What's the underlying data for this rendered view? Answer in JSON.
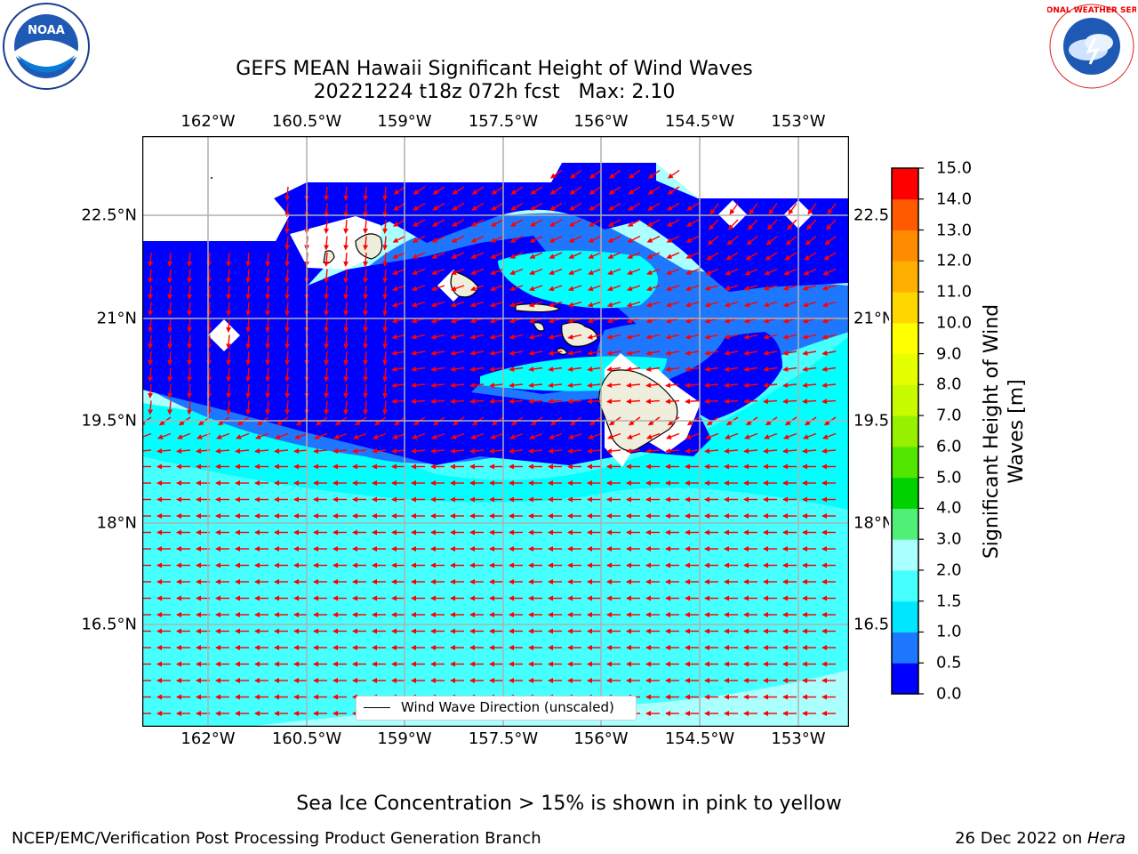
{
  "title_line1": "GEFS MEAN Hawaii Significant Height of Wind Waves",
  "title_line2": "20221224 t18z 072h fcst   Max: 2.10",
  "x_ticks": [
    "162°W",
    "160.5°W",
    "159°W",
    "157.5°W",
    "156°W",
    "154.5°W",
    "153°W"
  ],
  "y_ticks": [
    "22.5°N",
    "21°N",
    "19.5°N",
    "18°N",
    "16.5°N"
  ],
  "y_ticks_right": [
    "22.5",
    "21°N",
    "19.5",
    "18°N",
    "16.5"
  ],
  "legend_label": "Wind Wave Direction (unscaled)",
  "colorbar": {
    "label": "Significant Height of Wind Waves [m]",
    "ticks": [
      "0.0",
      "0.5",
      "1.0",
      "1.5",
      "2.0",
      "3.0",
      "4.0",
      "5.0",
      "6.0",
      "7.0",
      "8.0",
      "9.0",
      "10.0",
      "11.0",
      "12.0",
      "13.0",
      "14.0",
      "15.0"
    ],
    "colors": [
      "#0000ff",
      "#1e78ff",
      "#00e6ff",
      "#46ffff",
      "#aaffff",
      "#50f078",
      "#00d200",
      "#50e600",
      "#96f000",
      "#c8fa00",
      "#e6ff00",
      "#ffff00",
      "#ffd700",
      "#ffaf00",
      "#ff8c00",
      "#ff5a00",
      "#ff0000"
    ]
  },
  "sea_ice_note": "Sea Ice Concentration > 15% is shown in pink to yellow",
  "footer_left": "NCEP/EMC/Verification Post Processing Product Generation Branch",
  "footer_date": "26 Dec 2022 on ",
  "footer_machine": "Hera",
  "logos": {
    "left": "NOAA",
    "right": "NATIONAL WEATHER SERVICE"
  },
  "colors": {
    "arrow": "#ff0000",
    "land": "#efeedc",
    "grid": "#b0b0b0"
  }
}
